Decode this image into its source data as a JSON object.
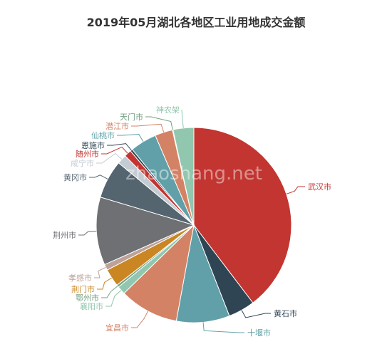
{
  "watermark": "zhaoshang.net",
  "chart_data": {
    "type": "pie",
    "title": "2019年05月湖北各地区工业用地成交金额",
    "slices": [
      {
        "label": "武汉市",
        "value": 40.5,
        "color": "#c23531"
      },
      {
        "label": "黄石市",
        "value": 4.5,
        "color": "#2f4554"
      },
      {
        "label": "十堰市",
        "value": 9.0,
        "color": "#61a0a8"
      },
      {
        "label": "宜昌市",
        "value": 10.0,
        "color": "#d48265"
      },
      {
        "label": "襄阳市",
        "value": 1.4,
        "color": "#91c7ae"
      },
      {
        "label": "鄂州市",
        "value": 0.4,
        "color": "#749f83"
      },
      {
        "label": "荆门市",
        "value": 3.0,
        "color": "#ca8622"
      },
      {
        "label": "孝感市",
        "value": 1.0,
        "color": "#bda29a"
      },
      {
        "label": "荆州市",
        "value": 11.5,
        "color": "#6e7074"
      },
      {
        "label": "黄冈市",
        "value": 6.5,
        "color": "#546570"
      },
      {
        "label": "咸宁市",
        "value": 1.6,
        "color": "#c4ccd3"
      },
      {
        "label": "随州市",
        "value": 1.2,
        "color": "#c23531"
      },
      {
        "label": "恩施市",
        "value": 0.4,
        "color": "#2f4554"
      },
      {
        "label": "仙桃市",
        "value": 4.5,
        "color": "#61a0a8"
      },
      {
        "label": "潜江市",
        "value": 3.0,
        "color": "#d48265"
      },
      {
        "label": "天门市",
        "value": 0.1,
        "color": "#749f83"
      },
      {
        "label": "神农架",
        "value": 3.5,
        "color": "#91c7ae"
      }
    ]
  }
}
